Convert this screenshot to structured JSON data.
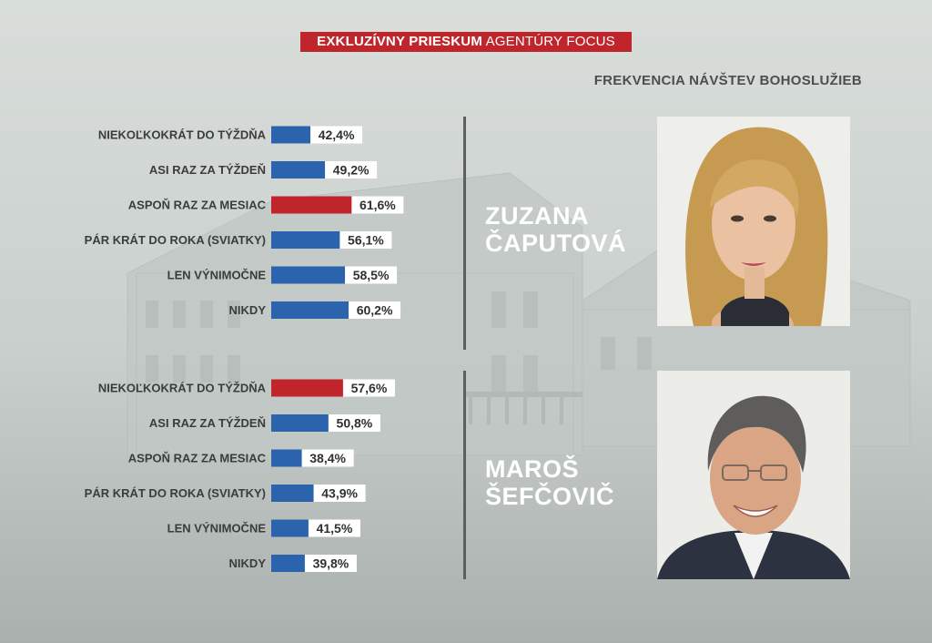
{
  "header": {
    "badge_strong": "EXKLUZÍVNY PRIESKUM",
    "badge_rest": "AGENTÚRY FOCUS"
  },
  "chart_title": "FREKVENCIA NÁVŠTEV BOHOSLUŽIEB",
  "colors": {
    "bar_default": "#2b63ad",
    "bar_highlight": "#c0252b",
    "badge_bg": "#c0252b"
  },
  "candidates": [
    {
      "name_line1": "ZUZANA",
      "name_line2": "ČAPUTOVÁ",
      "photo": "portrait-woman"
    },
    {
      "name_line1": "MAROŠ",
      "name_line2": "ŠEFČOVIČ",
      "photo": "portrait-man"
    }
  ],
  "chart_data": [
    {
      "type": "bar",
      "orientation": "horizontal",
      "series": [
        {
          "name": "ZUZANA ČAPUTOVÁ"
        }
      ],
      "categories": [
        "NIEKOĽKOKRÁT DO TÝŽDŇA",
        "ASI RAZ ZA TÝŽDEŇ",
        "ASPOŇ RAZ ZA MESIAC",
        "PÁR KRÁT DO ROKA (SVIATKY)",
        "LEN VÝNIMOČNE",
        "NIKDY"
      ],
      "values": [
        42.4,
        49.2,
        61.6,
        56.1,
        58.5,
        60.2
      ],
      "value_labels": [
        "42,4%",
        "49,2%",
        "61,6%",
        "56,1%",
        "58,5%",
        "60,2%"
      ],
      "highlight_index": 2,
      "unit": "%"
    },
    {
      "type": "bar",
      "orientation": "horizontal",
      "series": [
        {
          "name": "MAROŠ ŠEFČOVIČ"
        }
      ],
      "categories": [
        "NIEKOĽKOKRÁT DO TÝŽDŇA",
        "ASI RAZ ZA TÝŽDEŇ",
        "ASPOŇ RAZ ZA MESIAC",
        "PÁR KRÁT DO ROKA (SVIATKY)",
        "LEN VÝNIMOČNE",
        "NIKDY"
      ],
      "values": [
        57.6,
        50.8,
        38.4,
        43.9,
        41.5,
        39.8
      ],
      "value_labels": [
        "57,6%",
        "50,8%",
        "38,4%",
        "43,9%",
        "41,5%",
        "39,8%"
      ],
      "highlight_index": 0,
      "unit": "%"
    }
  ]
}
